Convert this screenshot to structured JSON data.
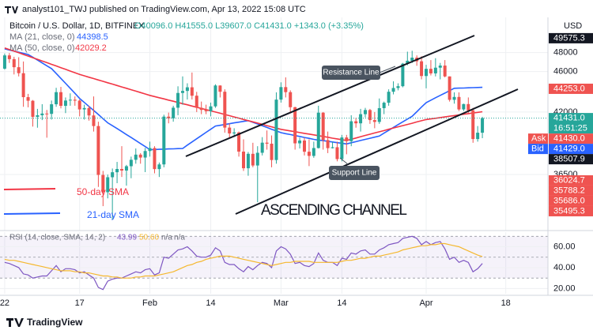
{
  "header": {
    "publisher": "analyst101_TWJ published on TradingView.com, Apr 13, 2022 15:08 UTC",
    "footer": "TradingView"
  },
  "chart_data": {
    "type": "candlestick",
    "symbol": "Bitcoin / U.S. Dollar, 1D, BITFINEX",
    "ohlc_readout": "O40096.0 H41555.0 L39607.0 C41431.0 +1343.0 (+3.35%)",
    "currency": "USD",
    "x": [
      "2022-01-01",
      "2022-01-02",
      "2022-01-03",
      "2022-01-04",
      "2022-01-05",
      "2022-01-06",
      "2022-01-07",
      "2022-01-08",
      "2022-01-09",
      "2022-01-10",
      "2022-01-11",
      "2022-01-12",
      "2022-01-13",
      "2022-01-14",
      "2022-01-15",
      "2022-01-16",
      "2022-01-17",
      "2022-01-18",
      "2022-01-19",
      "2022-01-20",
      "2022-01-21",
      "2022-01-22",
      "2022-01-23",
      "2022-01-24",
      "2022-01-25",
      "2022-01-26",
      "2022-01-27",
      "2022-01-28",
      "2022-01-29",
      "2022-01-30",
      "2022-01-31",
      "2022-02-01",
      "2022-02-02",
      "2022-02-03",
      "2022-02-04",
      "2022-02-05",
      "2022-02-06",
      "2022-02-07",
      "2022-02-08",
      "2022-02-09",
      "2022-02-10",
      "2022-02-11",
      "2022-02-12",
      "2022-02-13",
      "2022-02-14",
      "2022-02-15",
      "2022-02-16",
      "2022-02-17",
      "2022-02-18",
      "2022-02-19",
      "2022-02-20",
      "2022-02-21",
      "2022-02-22",
      "2022-02-23",
      "2022-02-24",
      "2022-02-25",
      "2022-02-26",
      "2022-02-27",
      "2022-02-28",
      "2022-03-01",
      "2022-03-02",
      "2022-03-03",
      "2022-03-04",
      "2022-03-05",
      "2022-03-06",
      "2022-03-07",
      "2022-03-08",
      "2022-03-09",
      "2022-03-10",
      "2022-03-11",
      "2022-03-12",
      "2022-03-13",
      "2022-03-14",
      "2022-03-15",
      "2022-03-16",
      "2022-03-17",
      "2022-03-18",
      "2022-03-19",
      "2022-03-20",
      "2022-03-21",
      "2022-03-22",
      "2022-03-23",
      "2022-03-24",
      "2022-03-25",
      "2022-03-26",
      "2022-03-27",
      "2022-03-28",
      "2022-03-29",
      "2022-03-30",
      "2022-03-31",
      "2022-04-01",
      "2022-04-02",
      "2022-04-03",
      "2022-04-04",
      "2022-04-05",
      "2022-04-06",
      "2022-04-07",
      "2022-04-08",
      "2022-04-09",
      "2022-04-10",
      "2022-04-11",
      "2022-04-12",
      "2022-04-13"
    ],
    "open": [
      46300,
      47700,
      47300,
      46450,
      45830,
      43430,
      43080,
      41550,
      41700,
      41860,
      41830,
      42740,
      43920,
      42590,
      43100,
      43180,
      43090,
      42250,
      42380,
      41680,
      40700,
      36470,
      35080,
      36280,
      36690,
      36960,
      36830,
      37190,
      37730,
      38170,
      37920,
      38480,
      38740,
      36950,
      37340,
      41570,
      41410,
      42410,
      43840,
      44040,
      44400,
      43570,
      42400,
      42200,
      42080,
      42540,
      44580,
      43960,
      40560,
      40030,
      40120,
      38430,
      37020,
      38240,
      37250,
      38330,
      39210,
      39120,
      37710,
      43190,
      44420,
      43920,
      42460,
      39150,
      39400,
      38420,
      38060,
      38740,
      41940,
      39440,
      38730,
      38810,
      37790,
      39670,
      39340,
      41140,
      40950,
      41800,
      42190,
      41250,
      41080,
      42370,
      42890,
      43960,
      44330,
      44510,
      46820,
      47130,
      47460,
      47070,
      45540,
      46280,
      45810,
      46400,
      46620,
      45500,
      43170,
      43450,
      42250,
      42760,
      42160,
      39530,
      40096
    ],
    "high": [
      47900,
      47950,
      47550,
      47500,
      47050,
      43750,
      43150,
      42300,
      42750,
      42200,
      43100,
      44350,
      44450,
      43400,
      43800,
      43500,
      43200,
      42700,
      42600,
      43500,
      41100,
      36800,
      36500,
      37000,
      37550,
      38900,
      37300,
      38000,
      38700,
      38300,
      38750,
      39300,
      38900,
      37500,
      41750,
      41950,
      42600,
      44500,
      45500,
      44800,
      45900,
      43950,
      43000,
      42700,
      42900,
      44700,
      44600,
      44200,
      40950,
      40500,
      40200,
      39500,
      38400,
      39200,
      38900,
      39700,
      40300,
      39850,
      43900,
      44900,
      45400,
      44100,
      42500,
      39650,
      39650,
      39500,
      39300,
      42600,
      42000,
      40200,
      39300,
      39300,
      39900,
      39900,
      41700,
      41450,
      42300,
      42400,
      42300,
      42000,
      43300,
      43000,
      44200,
      45000,
      44800,
      46900,
      48100,
      48200,
      47700,
      47600,
      46700,
      47200,
      47400,
      46900,
      47200,
      45500,
      43900,
      43900,
      42800,
      43400,
      42400,
      40700,
      41555
    ],
    "low": [
      46200,
      46900,
      45700,
      45500,
      42500,
      42450,
      40650,
      40550,
      41250,
      39650,
      41300,
      42500,
      42350,
      41900,
      42600,
      42600,
      41600,
      41300,
      41200,
      40200,
      35500,
      34000,
      34600,
      33000,
      35800,
      36300,
      35600,
      36200,
      37400,
      37400,
      36700,
      38000,
      36600,
      36300,
      37100,
      40950,
      41100,
      41700,
      42700,
      43200,
      43200,
      42000,
      41800,
      41800,
      41600,
      42400,
      43400,
      40100,
      39600,
      39700,
      38000,
      36800,
      36400,
      37100,
      34300,
      38100,
      38600,
      37100,
      37400,
      42900,
      43400,
      41900,
      38600,
      38700,
      38100,
      37200,
      37900,
      38700,
      38600,
      38300,
      38700,
      37600,
      37600,
      38200,
      38900,
      40550,
      40200,
      41500,
      40900,
      40500,
      40900,
      41800,
      42600,
      43700,
      44100,
      44400,
      46650,
      46900,
      46600,
      45200,
      44300,
      45600,
      45500,
      45200,
      45400,
      43000,
      42800,
      42100,
      42100,
      41900,
      39200,
      39300,
      39607
    ],
    "close": [
      47700,
      47300,
      46450,
      45830,
      43430,
      43080,
      41550,
      41700,
      41860,
      41830,
      42740,
      43920,
      42590,
      43100,
      43180,
      43090,
      42250,
      42380,
      41680,
      40700,
      36470,
      35080,
      36280,
      36690,
      36960,
      36830,
      37190,
      37730,
      38170,
      37920,
      38480,
      38740,
      36950,
      37340,
      41570,
      41410,
      42410,
      43840,
      44040,
      44400,
      43570,
      42400,
      42200,
      42080,
      42540,
      44580,
      43960,
      40560,
      40030,
      40120,
      38430,
      37020,
      38240,
      37250,
      38330,
      39210,
      39120,
      37710,
      43190,
      44420,
      43920,
      42460,
      39150,
      39400,
      38420,
      38060,
      38740,
      41940,
      39440,
      38730,
      38810,
      37790,
      39670,
      39340,
      41140,
      40950,
      41800,
      42190,
      41250,
      41080,
      42370,
      42890,
      43960,
      44330,
      44510,
      46820,
      47130,
      47460,
      47070,
      45540,
      46280,
      45810,
      46400,
      46620,
      45500,
      43170,
      43450,
      42250,
      42760,
      42160,
      39530,
      40096,
      41431
    ],
    "up_color": "#26a69a",
    "down_color": "#ef5350",
    "series": [
      {
        "name": "MA (21, close, 0)",
        "color": "#2962ff",
        "values": [
          48400,
          48280,
          48160,
          48040,
          47920,
          47800,
          47500,
          47200,
          46900,
          46600,
          46300,
          45800,
          45300,
          44800,
          44300,
          43800,
          43300,
          42920,
          42530,
          42150,
          41770,
          41380,
          41000,
          40730,
          40470,
          40200,
          39930,
          39670,
          39400,
          39130,
          38870,
          38600,
          38610,
          38630,
          38640,
          38660,
          38670,
          38690,
          38700,
          38990,
          39270,
          39560,
          39840,
          40130,
          40410,
          40700,
          40770,
          40840,
          40910,
          40990,
          41060,
          41130,
          41200,
          41040,
          40890,
          40730,
          40570,
          40410,
          40260,
          40100,
          40010,
          39930,
          39840,
          39760,
          39670,
          39590,
          39500,
          39440,
          39390,
          39330,
          39270,
          39210,
          39160,
          39100,
          39200,
          39300,
          39400,
          39500,
          39600,
          39700,
          39800,
          40060,
          40310,
          40570,
          40830,
          41090,
          41340,
          41600,
          42030,
          42470,
          42900,
          43130,
          43370,
          43600,
          43830,
          44070,
          44300,
          44320,
          44330,
          44350,
          44370,
          44380,
          44398.5
        ]
      },
      {
        "name": "MA (50, close, 0)",
        "color": "#f23645",
        "values": [
          48500,
          48330,
          48150,
          47980,
          47800,
          47630,
          47450,
          47280,
          47100,
          46930,
          46750,
          46580,
          46400,
          46230,
          46050,
          45880,
          45700,
          45560,
          45420,
          45280,
          45140,
          45000,
          44860,
          44720,
          44580,
          44440,
          44300,
          44160,
          44020,
          43880,
          43740,
          43600,
          43490,
          43370,
          43260,
          43140,
          43030,
          42910,
          42800,
          42690,
          42570,
          42460,
          42340,
          42230,
          42110,
          42000,
          41890,
          41770,
          41660,
          41540,
          41430,
          41310,
          41200,
          41090,
          40970,
          40860,
          40740,
          40630,
          40510,
          40400,
          40330,
          40260,
          40190,
          40110,
          40040,
          39970,
          39900,
          39830,
          39760,
          39690,
          39610,
          39540,
          39470,
          39400,
          39510,
          39620,
          39740,
          39850,
          39960,
          40070,
          40180,
          40290,
          40410,
          40520,
          40630,
          40740,
          40850,
          40960,
          41080,
          41190,
          41300,
          41360,
          41420,
          41480,
          41540,
          41610,
          41670,
          41730,
          41790,
          41850,
          41910,
          41970,
          42029.2
        ]
      }
    ],
    "log_scale": true,
    "ylim": [
      32300,
      52600
    ],
    "yticks": [
      36500,
      42000,
      46000,
      48000
    ],
    "xlim": [
      "2021-12-31",
      "2022-04-27"
    ],
    "xticks": [
      {
        "value": "2022-01-01",
        "label": "22"
      },
      {
        "value": "2022-01-17",
        "label": "17"
      },
      {
        "value": "2022-02-01",
        "label": "Feb"
      },
      {
        "value": "2022-02-14",
        "label": "14"
      },
      {
        "value": "2022-03-01",
        "label": "Mar"
      },
      {
        "value": "2022-03-14",
        "label": "14"
      },
      {
        "value": "2022-04-01",
        "label": "Apr"
      },
      {
        "value": "2022-04-18",
        "label": "18"
      }
    ],
    "grid": true,
    "price_tags": [
      {
        "value": 49575.3,
        "label": "49575.3",
        "color": "#131722"
      },
      {
        "value": 44253,
        "label": "44253.0",
        "color": "#ef5350"
      },
      {
        "value": 41431,
        "label": "41431.0",
        "color": "#26a69a",
        "countdown": "16:51:25"
      },
      {
        "value": 41430,
        "label": "41430.0",
        "color": "#ef5350",
        "prefix": "Ask"
      },
      {
        "value": 41429,
        "label": "41429.0",
        "color": "#2962ff",
        "prefix": "Bid"
      },
      {
        "value": 38507.9,
        "label": "38507.9",
        "color": "#131722"
      },
      {
        "value": 36024.7,
        "label": "36024.7",
        "color": "#ef5350"
      },
      {
        "value": 35788.2,
        "label": "35788.2",
        "color": "#ef5350"
      },
      {
        "value": 35686,
        "label": "35686.0",
        "color": "#ef5350"
      },
      {
        "value": 35495.3,
        "label": "35495.3",
        "color": "#ef5350"
      }
    ],
    "annotations": [
      "Resistance Line",
      "Support Line",
      "ASCENDING CHANNEL",
      "50-day SMA",
      "21-day SMA"
    ],
    "rsi": {
      "title": "RSI (14, close, SMA, 14, 2)",
      "readouts": [
        "43.99",
        "50.60",
        "n/a",
        "n/a"
      ],
      "ylim": [
        15,
        74
      ],
      "yticks": [
        {
          "value": 20,
          "label": "20.00"
        },
        {
          "value": 40,
          "label": "40.00"
        },
        {
          "value": 60,
          "label": "60.00"
        }
      ],
      "band": [
        30,
        70
      ],
      "midline": 50,
      "series": [
        {
          "color": "#7e57c2",
          "values": [
            45,
            44,
            42,
            40,
            34,
            33,
            30,
            31,
            32,
            32,
            37,
            42,
            36,
            39,
            39,
            38,
            35,
            36,
            33,
            30,
            21,
            19,
            27,
            29,
            30,
            30,
            32,
            34,
            36,
            35,
            38,
            39,
            33,
            35,
            50,
            49,
            53,
            57,
            58,
            60,
            56,
            51,
            50,
            50,
            52,
            59,
            56,
            45,
            43,
            43,
            39,
            36,
            41,
            38,
            42,
            45,
            44,
            40,
            56,
            60,
            58,
            53,
            44,
            45,
            42,
            41,
            44,
            54,
            47,
            45,
            45,
            42,
            49,
            48,
            54,
            53,
            56,
            57,
            53,
            53,
            57,
            59,
            62,
            63,
            64,
            68,
            69,
            70,
            68,
            62,
            65,
            62,
            64,
            65,
            58,
            48,
            50,
            45,
            47,
            45,
            36,
            39,
            43.99
          ]
        },
        {
          "color": "#f5b82e",
          "values": [
            48,
            47,
            47,
            46,
            45,
            44,
            43,
            42,
            41,
            40,
            39,
            38,
            37,
            37,
            37,
            36,
            36,
            35,
            35,
            34,
            33,
            32,
            32,
            31,
            31,
            30,
            30,
            30,
            31,
            31,
            32,
            32,
            32,
            33,
            34,
            35,
            36,
            38,
            40,
            42,
            43,
            45,
            46,
            48,
            49,
            50,
            51,
            51,
            51,
            50,
            49,
            48,
            47,
            46,
            45,
            44,
            43,
            42,
            43,
            44,
            45,
            45,
            46,
            46,
            46,
            46,
            45,
            45,
            45,
            45,
            45,
            45,
            46,
            47,
            47,
            48,
            49,
            49,
            50,
            51,
            51,
            52,
            53,
            54,
            55,
            57,
            58,
            59,
            60,
            61,
            61,
            62,
            62,
            63,
            63,
            62,
            61,
            60,
            58,
            56,
            54,
            52,
            50.6
          ]
        }
      ]
    }
  }
}
